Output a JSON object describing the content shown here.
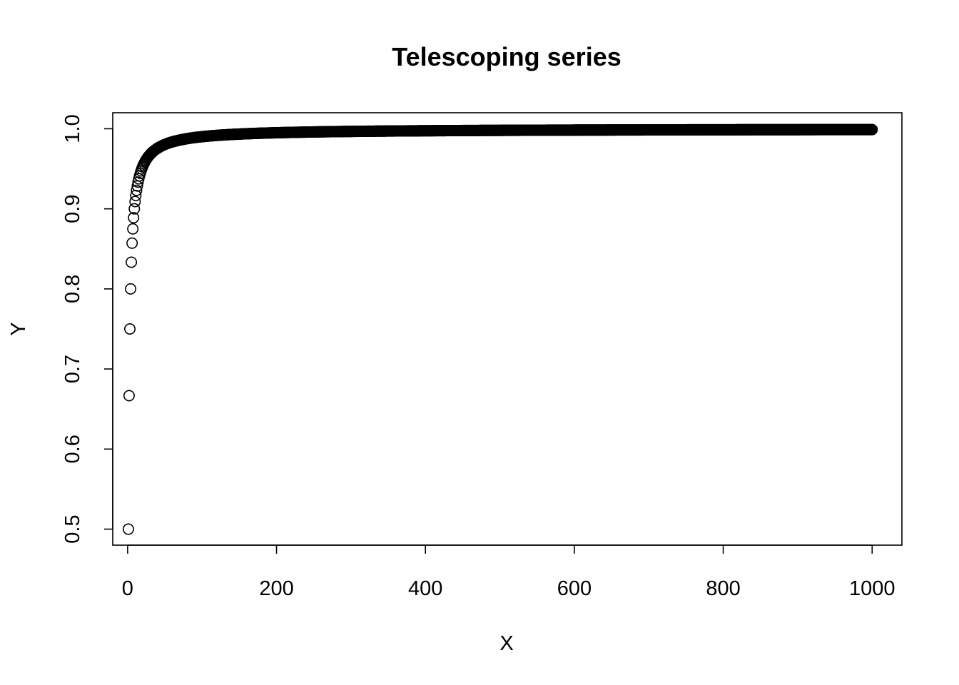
{
  "chart_data": {
    "type": "scatter",
    "title": "Telescoping series",
    "xlabel": "X",
    "ylabel": "Y",
    "xlim": [
      -20,
      1040
    ],
    "ylim": [
      0.48,
      1.02
    ],
    "x_ticks": [
      0,
      200,
      400,
      600,
      800,
      1000
    ],
    "x_tick_labels": [
      "0",
      "200",
      "400",
      "600",
      "800",
      "1000"
    ],
    "y_ticks": [
      0.5,
      0.6,
      0.7,
      0.8,
      0.9,
      1.0
    ],
    "y_tick_labels": [
      "0.5",
      "0.6",
      "0.7",
      "0.8",
      "0.9",
      "1.0"
    ],
    "grid": false,
    "marker": "open-circle",
    "color": "#000000",
    "series": [
      {
        "formula": "y = x / (x + 1)",
        "x_start": 1,
        "x_end": 1000,
        "x_step": 1
      }
    ]
  }
}
